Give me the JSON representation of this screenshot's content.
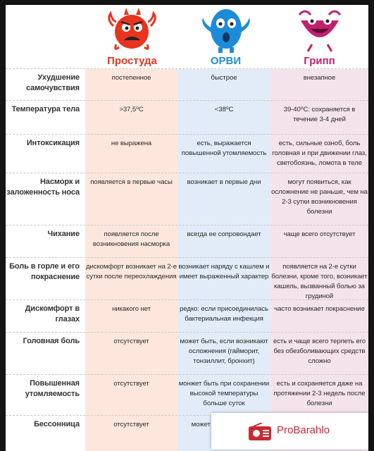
{
  "columns": [
    {
      "title": "Простуда",
      "color": "#e8341f"
    },
    {
      "title": "ОРВИ",
      "color": "#1e8bd8"
    },
    {
      "title": "Грипп",
      "color": "#c0206e"
    }
  ],
  "rows": [
    {
      "label": "Ухудшение самочувствия",
      "values": [
        "постепенное",
        "быстрое",
        "внезапное"
      ]
    },
    {
      "label": "Температура тела",
      "values": [
        ">37,5⁰С",
        "<38⁰С",
        "39-40⁰С: сохраняется в течение 3-4 дней"
      ]
    },
    {
      "label": "Интоксикация",
      "values": [
        "не выражена",
        "есть, выражается повышенной утомляемость",
        "есть, сильные озноб, боль головная и при движении глаз, светобоязнь, ломота в теле"
      ]
    },
    {
      "label": "Насморк и заложенность носа",
      "values": [
        "появляется в первые часы",
        "возникает в первые дни",
        "могут появиться, как осложнение не раньше, чем на 2-3 сутки возникновения болезни"
      ]
    },
    {
      "label": "Чихание",
      "values": [
        "появляется после возникновения насморка",
        "всегда ее сопровондает",
        "чаще всего отсутствует"
      ]
    },
    {
      "label": "Боль в горле и его покраснение",
      "values": [
        "дискомфорт возникает на 2-е сутки после переохлаждения",
        "возникает наряду с кашлем и имеет выраженный характер",
        "появляется на 2-е сутки болезни, кроме того, возникает кашель, вызванный болью за грудиной"
      ]
    },
    {
      "label": "Дискомфорт в глазах",
      "values": [
        "никакого нет",
        "редко: если присоединилась бактериальная инфекция",
        "часто возникает покраснение"
      ]
    },
    {
      "label": "Головная боль",
      "values": [
        "отсутствует",
        "может быть, если возникают осложнения (гайморит, тонзиллит, бронхит)",
        "есть и чаще всего терпеть его без обезболивающих средств сложно"
      ]
    },
    {
      "label": "Повышенная утомляемость",
      "values": [
        "отсутствует",
        "монжет быть при сохранении высокой температуры больше суток",
        "есть и сохраняется даже на протяжении 2-3 недель после болезни"
      ]
    },
    {
      "label": "Бессонница",
      "values": [
        "отсутствует",
        "может во… высоко…",
        ""
      ]
    }
  ],
  "ad": {
    "text": "ProBarahlo",
    "icon": "radio-icon",
    "color": "#c72a33"
  }
}
